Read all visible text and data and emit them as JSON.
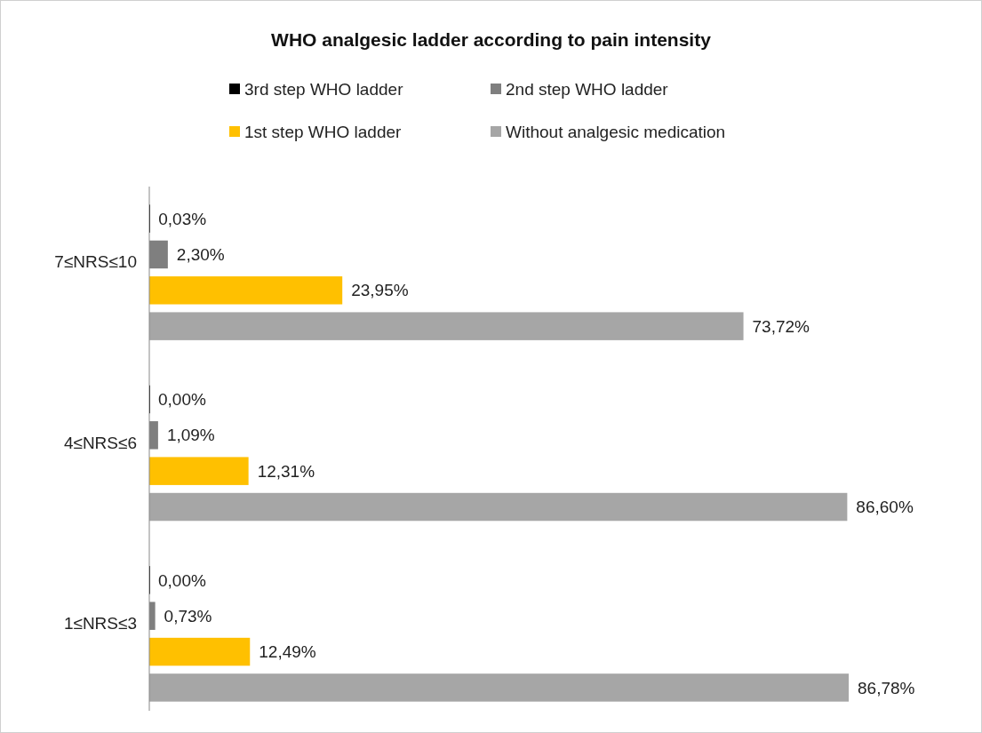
{
  "chart_data": {
    "type": "bar",
    "orientation": "horizontal",
    "title": "WHO analgesic ladder according to pain intensity",
    "categories": [
      "7≤NRS≤10",
      "4≤NRS≤6",
      "1≤NRS≤3"
    ],
    "tick_labels": "y",
    "legend": "top",
    "series": [
      {
        "name": "3rd step WHO ladder",
        "color": "#000000",
        "values": [
          0.03,
          0.0,
          0.0
        ],
        "value_labels": [
          "0,03%",
          "0,00%",
          "0,00%"
        ]
      },
      {
        "name": "2nd step WHO ladder",
        "color": "#7f7f7f",
        "values": [
          2.3,
          1.09,
          0.73
        ],
        "value_labels": [
          "2,30%",
          "1,09%",
          "0,73%"
        ]
      },
      {
        "name": "1st step WHO ladder",
        "color": "#ffc000",
        "values": [
          23.95,
          12.31,
          12.49
        ],
        "value_labels": [
          "23,95%",
          "12,31%",
          "12,49%"
        ]
      },
      {
        "name": "Without analgesic medication",
        "color": "#a6a6a6",
        "values": [
          73.72,
          86.6,
          86.78
        ],
        "value_labels": [
          "73,72%",
          "86,60%",
          "86,78%"
        ]
      }
    ]
  }
}
